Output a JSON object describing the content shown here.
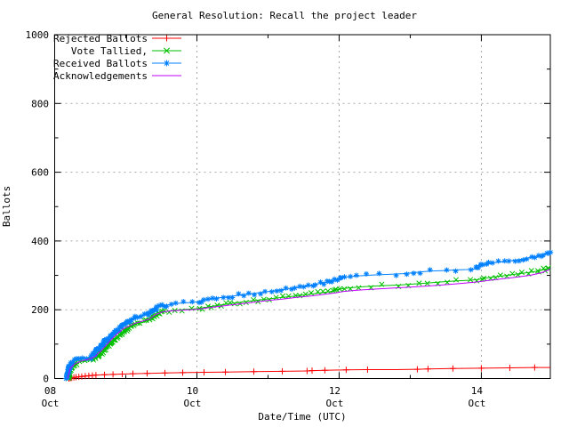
{
  "title": "General Resolution: Recall the project leader",
  "axes": {
    "x_label": "Date/Time (UTC)",
    "y_label": "Ballots"
  },
  "chart_data": {
    "type": "line",
    "title": "General Resolution: Recall the project leader",
    "xlabel": "Date/Time (UTC)",
    "ylabel": "Ballots",
    "x_unit": "day of October (UTC)",
    "xlim": [
      8,
      14.97
    ],
    "ylim": [
      0,
      1000
    ],
    "grid": true,
    "legend_position": "top-left",
    "x_ticks": [
      {
        "value": 8,
        "line1": "08",
        "line2": "Oct"
      },
      {
        "value": 10,
        "line1": "10",
        "line2": "Oct"
      },
      {
        "value": 12,
        "line1": "12",
        "line2": "Oct"
      },
      {
        "value": 14,
        "line1": "14",
        "line2": "Oct"
      }
    ],
    "x_minor_ticks": [
      9,
      11,
      13
    ],
    "y_ticks": [
      0,
      200,
      400,
      600,
      800,
      1000
    ],
    "y_minor_ticks": [
      100,
      300,
      500,
      700,
      900
    ],
    "series": [
      {
        "name": "Rejected Ballots",
        "color": "#ff0000",
        "marker": "plus",
        "marker_value_step": 1,
        "points": [
          [
            8.2,
            0
          ],
          [
            8.24,
            2
          ],
          [
            8.3,
            4
          ],
          [
            8.38,
            6
          ],
          [
            8.48,
            8
          ],
          [
            8.58,
            10
          ],
          [
            8.7,
            11
          ],
          [
            8.82,
            12
          ],
          [
            8.95,
            13
          ],
          [
            9.1,
            14
          ],
          [
            9.3,
            15
          ],
          [
            9.55,
            16
          ],
          [
            9.8,
            17
          ],
          [
            10.1,
            18
          ],
          [
            10.4,
            19
          ],
          [
            10.8,
            20
          ],
          [
            11.2,
            21
          ],
          [
            11.55,
            22
          ],
          [
            11.62,
            23
          ],
          [
            11.8,
            24
          ],
          [
            12.1,
            25
          ],
          [
            12.4,
            26
          ],
          [
            12.8,
            26
          ],
          [
            13.1,
            27
          ],
          [
            13.25,
            28
          ],
          [
            13.6,
            29
          ],
          [
            14.0,
            30
          ],
          [
            14.4,
            31
          ],
          [
            14.75,
            32
          ],
          [
            14.97,
            32
          ]
        ]
      },
      {
        "name": "Vote Tallied,",
        "color": "#00c000",
        "marker": "cross",
        "marker_value_step": 2,
        "points": [
          [
            8.19,
            0
          ],
          [
            8.22,
            25
          ],
          [
            8.26,
            38
          ],
          [
            8.32,
            46
          ],
          [
            8.42,
            52
          ],
          [
            8.52,
            57
          ],
          [
            8.6,
            66
          ],
          [
            8.68,
            80
          ],
          [
            8.76,
            97
          ],
          [
            8.84,
            113
          ],
          [
            8.92,
            128
          ],
          [
            9.0,
            142
          ],
          [
            9.08,
            152
          ],
          [
            9.16,
            160
          ],
          [
            9.25,
            164
          ],
          [
            9.33,
            170
          ],
          [
            9.41,
            182
          ],
          [
            9.5,
            192
          ],
          [
            9.6,
            196
          ],
          [
            9.72,
            199
          ],
          [
            9.85,
            201
          ],
          [
            10.0,
            203
          ],
          [
            10.15,
            208
          ],
          [
            10.3,
            213
          ],
          [
            10.5,
            219
          ],
          [
            10.7,
            224
          ],
          [
            10.9,
            229
          ],
          [
            11.1,
            234
          ],
          [
            11.3,
            238
          ],
          [
            11.5,
            243
          ],
          [
            11.7,
            248
          ],
          [
            11.88,
            253
          ],
          [
            12.0,
            260
          ],
          [
            12.15,
            264
          ],
          [
            12.35,
            267
          ],
          [
            12.6,
            270
          ],
          [
            12.85,
            272
          ],
          [
            13.05,
            275
          ],
          [
            13.25,
            278
          ],
          [
            13.45,
            281
          ],
          [
            13.65,
            284
          ],
          [
            13.85,
            286
          ],
          [
            13.95,
            288
          ],
          [
            14.05,
            292
          ],
          [
            14.2,
            296
          ],
          [
            14.35,
            300
          ],
          [
            14.5,
            304
          ],
          [
            14.65,
            308
          ],
          [
            14.78,
            312
          ],
          [
            14.88,
            317
          ],
          [
            14.97,
            323
          ]
        ]
      },
      {
        "name": "Received Ballots",
        "color": "#0080ff",
        "marker": "star",
        "marker_value_step": 2,
        "points": [
          [
            8.17,
            0
          ],
          [
            8.19,
            18
          ],
          [
            8.21,
            35
          ],
          [
            8.24,
            48
          ],
          [
            8.3,
            54
          ],
          [
            8.4,
            58
          ],
          [
            8.5,
            62
          ],
          [
            8.56,
            72
          ],
          [
            8.62,
            88
          ],
          [
            8.7,
            105
          ],
          [
            8.78,
            122
          ],
          [
            8.86,
            138
          ],
          [
            8.95,
            152
          ],
          [
            9.0,
            160
          ],
          [
            9.06,
            170
          ],
          [
            9.12,
            178
          ],
          [
            9.22,
            182
          ],
          [
            9.3,
            186
          ],
          [
            9.38,
            198
          ],
          [
            9.46,
            208
          ],
          [
            9.55,
            213
          ],
          [
            9.65,
            216
          ],
          [
            9.75,
            219
          ],
          [
            9.9,
            221
          ],
          [
            10.0,
            223
          ],
          [
            10.1,
            228
          ],
          [
            10.25,
            233
          ],
          [
            10.4,
            237
          ],
          [
            10.55,
            241
          ],
          [
            10.7,
            245
          ],
          [
            10.85,
            249
          ],
          [
            11.0,
            253
          ],
          [
            11.15,
            257
          ],
          [
            11.3,
            261
          ],
          [
            11.45,
            266
          ],
          [
            11.6,
            271
          ],
          [
            11.75,
            277
          ],
          [
            11.88,
            282
          ],
          [
            12.0,
            290
          ],
          [
            12.1,
            295
          ],
          [
            12.25,
            298
          ],
          [
            12.45,
            301
          ],
          [
            12.7,
            303
          ],
          [
            12.9,
            305
          ],
          [
            13.05,
            308
          ],
          [
            13.2,
            311
          ],
          [
            13.35,
            313
          ],
          [
            13.5,
            314
          ],
          [
            13.65,
            316
          ],
          [
            13.8,
            317
          ],
          [
            13.92,
            319
          ],
          [
            14.0,
            328
          ],
          [
            14.08,
            333
          ],
          [
            14.2,
            337
          ],
          [
            14.35,
            341
          ],
          [
            14.5,
            345
          ],
          [
            14.62,
            349
          ],
          [
            14.72,
            353
          ],
          [
            14.82,
            357
          ],
          [
            14.9,
            361
          ],
          [
            14.97,
            366
          ]
        ]
      },
      {
        "name": "Acknowledgements",
        "color": "#c000ff",
        "marker": "none",
        "points": [
          [
            8.18,
            0
          ],
          [
            8.22,
            30
          ],
          [
            8.28,
            42
          ],
          [
            8.36,
            50
          ],
          [
            8.46,
            55
          ],
          [
            8.56,
            63
          ],
          [
            8.64,
            78
          ],
          [
            8.72,
            96
          ],
          [
            8.8,
            114
          ],
          [
            8.88,
            130
          ],
          [
            8.96,
            144
          ],
          [
            9.04,
            152
          ],
          [
            9.12,
            160
          ],
          [
            9.22,
            166
          ],
          [
            9.32,
            172
          ],
          [
            9.42,
            186
          ],
          [
            9.52,
            194
          ],
          [
            9.65,
            197
          ],
          [
            9.8,
            199
          ],
          [
            10.0,
            201
          ],
          [
            10.2,
            207
          ],
          [
            10.4,
            212
          ],
          [
            10.6,
            217
          ],
          [
            10.8,
            222
          ],
          [
            11.0,
            227
          ],
          [
            11.2,
            231
          ],
          [
            11.4,
            236
          ],
          [
            11.6,
            240
          ],
          [
            11.8,
            245
          ],
          [
            11.95,
            249
          ],
          [
            12.05,
            253
          ],
          [
            12.25,
            257
          ],
          [
            12.5,
            260
          ],
          [
            12.75,
            263
          ],
          [
            13.0,
            266
          ],
          [
            13.25,
            269
          ],
          [
            13.5,
            273
          ],
          [
            13.75,
            277
          ],
          [
            13.95,
            281
          ],
          [
            14.1,
            285
          ],
          [
            14.3,
            290
          ],
          [
            14.5,
            295
          ],
          [
            14.7,
            301
          ],
          [
            14.85,
            308
          ],
          [
            14.97,
            318
          ]
        ]
      }
    ]
  }
}
